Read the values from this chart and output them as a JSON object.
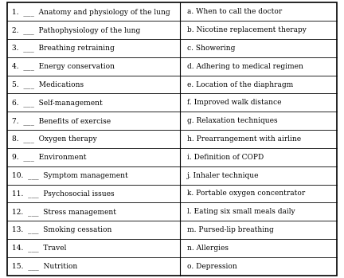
{
  "left_items": [
    "1.  ___  Anatomy and physiology of the lung",
    "2.  ___  Pathophysiology of the lung",
    "3.  ___  Breathing retraining",
    "4.  ___  Energy conservation",
    "5.  ___  Medications",
    "6.  ___  Self-management",
    "7.  ___  Benefits of exercise",
    "8.  ___  Oxygen therapy",
    "9.  ___  Environment",
    "10.  ___  Symptom management",
    "11.  ___  Psychosocial issues",
    "12.  ___  Stress management",
    "13.  ___  Smoking cessation",
    "14.  ___  Travel",
    "15.  ___  Nutrition"
  ],
  "right_items": [
    "a. When to call the doctor",
    "b. Nicotine replacement therapy",
    "c. Showering",
    "d. Adhering to medical regimen",
    "e. Location of the diaphragm",
    "f. Improved walk distance",
    "g. Relaxation techniques",
    "h. Prearrangement with airline",
    "i. Definition of COPD",
    "j. Inhaler technique",
    "k. Portable oxygen concentrator",
    "l. Eating six small meals daily",
    "m. Pursed-lip breathing",
    "n. Allergies",
    "o. Depression"
  ],
  "bg_color": "#ffffff",
  "border_color": "#000000",
  "text_color": "#000000",
  "font_size": 6.5,
  "col_split": 0.525
}
